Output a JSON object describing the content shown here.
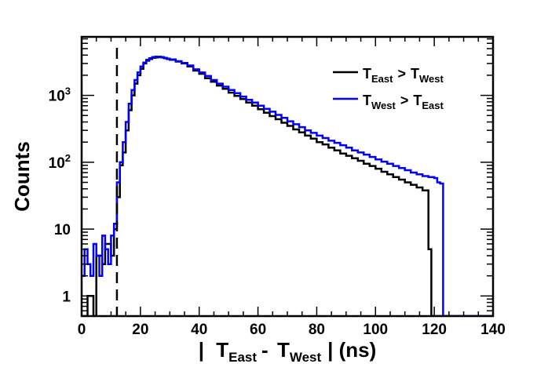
{
  "chart_data": {
    "type": "line",
    "style": "step-histogram",
    "title": "",
    "xlabel": {
      "prefix": "|",
      "var1": "T",
      "var1_sub": "East",
      "op": "-",
      "var2": "T",
      "var2_sub": "West",
      "suffix": "| (ns)"
    },
    "ylabel": "Counts",
    "xlim": [
      0,
      140
    ],
    "ylim": [
      0.5,
      7500
    ],
    "yscale": "log",
    "x_ticks": [
      0,
      20,
      40,
      60,
      80,
      100,
      120,
      140
    ],
    "y_ticks": [
      {
        "value": 1,
        "label": "1"
      },
      {
        "value": 10,
        "label": "10"
      },
      {
        "value": 100,
        "label": "10",
        "exp": "2"
      },
      {
        "value": 1000,
        "label": "10",
        "exp": "3"
      }
    ],
    "grid": false,
    "legend_position": "top-right",
    "cut_line_x": 12,
    "series": [
      {
        "legend": {
          "a": "T",
          "a_sub": "East",
          "op": ">",
          "b": "T",
          "b_sub": "West"
        },
        "color": "#000000",
        "x": [
          0,
          2,
          4,
          5,
          7,
          8,
          10,
          11,
          12,
          13,
          14,
          15,
          16,
          17,
          18,
          19,
          20,
          21,
          22,
          23,
          24,
          25,
          26,
          27,
          28,
          29,
          30,
          32,
          34,
          36,
          38,
          40,
          42,
          44,
          46,
          48,
          50,
          52,
          54,
          56,
          58,
          60,
          62,
          64,
          66,
          68,
          70,
          72,
          74,
          76,
          78,
          80,
          82,
          84,
          86,
          88,
          90,
          92,
          94,
          96,
          98,
          100,
          102,
          104,
          106,
          108,
          110,
          112,
          114,
          116,
          118,
          119,
          120,
          121,
          122,
          124,
          140
        ],
        "y": [
          0.5,
          1,
          0.5,
          4,
          3,
          6,
          4,
          10,
          30,
          90,
          140,
          300,
          600,
          1000,
          1500,
          2000,
          2500,
          3000,
          3300,
          3500,
          3650,
          3700,
          3750,
          3700,
          3600,
          3500,
          3400,
          3200,
          3000,
          2700,
          2350,
          2100,
          1800,
          1600,
          1400,
          1250,
          1100,
          980,
          880,
          780,
          700,
          620,
          550,
          490,
          440,
          390,
          350,
          310,
          280,
          250,
          225,
          200,
          185,
          165,
          150,
          135,
          125,
          115,
          105,
          95,
          88,
          80,
          72,
          66,
          60,
          55,
          50,
          46,
          42,
          38,
          5,
          0.5,
          0.5,
          0.5,
          0.5,
          0.5,
          0.5
        ]
      },
      {
        "legend": {
          "a": "T",
          "a_sub": "West",
          "op": ">",
          "b": "T",
          "b_sub": "East"
        },
        "color": "#0000ff",
        "x": [
          0,
          1,
          2,
          3,
          4,
          5,
          6,
          7,
          8,
          9,
          10,
          11,
          12,
          13,
          14,
          15,
          16,
          17,
          18,
          19,
          20,
          21,
          22,
          23,
          24,
          25,
          26,
          27,
          28,
          29,
          30,
          32,
          34,
          36,
          38,
          40,
          42,
          44,
          46,
          48,
          50,
          52,
          54,
          56,
          58,
          60,
          62,
          64,
          66,
          68,
          70,
          72,
          74,
          76,
          78,
          80,
          82,
          84,
          86,
          88,
          90,
          92,
          94,
          96,
          98,
          100,
          102,
          104,
          106,
          108,
          110,
          112,
          114,
          116,
          118,
          120,
          121,
          122,
          123,
          124,
          140
        ],
        "y": [
          2,
          5,
          3,
          2,
          6,
          4,
          2,
          8,
          5,
          3,
          8,
          12,
          50,
          100,
          200,
          400,
          750,
          1200,
          1700,
          2200,
          2700,
          3100,
          3400,
          3600,
          3750,
          3800,
          3800,
          3750,
          3650,
          3550,
          3450,
          3250,
          3050,
          2800,
          2450,
          2200,
          1950,
          1700,
          1500,
          1350,
          1200,
          1080,
          960,
          860,
          780,
          700,
          630,
          570,
          510,
          460,
          410,
          370,
          335,
          300,
          275,
          250,
          230,
          210,
          195,
          180,
          165,
          150,
          140,
          130,
          120,
          110,
          102,
          95,
          88,
          82,
          76,
          70,
          66,
          62,
          60,
          58,
          50,
          48,
          0.5,
          0.5,
          0.5
        ]
      }
    ]
  }
}
